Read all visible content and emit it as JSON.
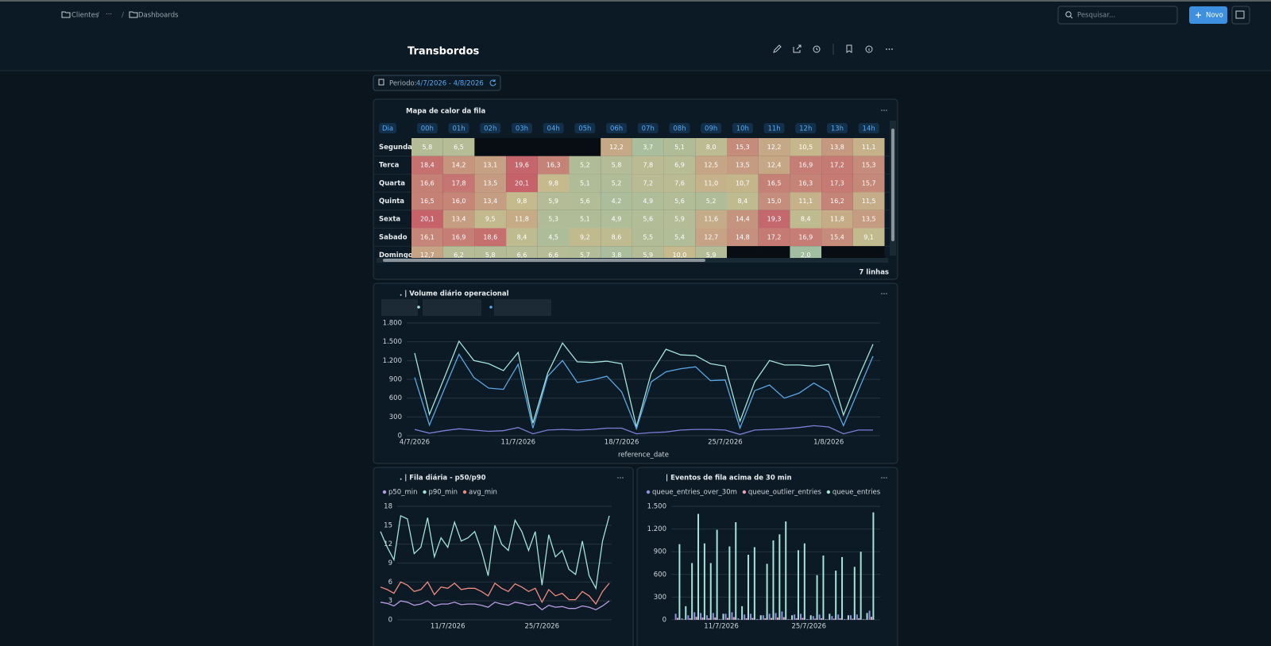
{
  "header": {
    "breadcrumb": [
      "Clientes",
      "···",
      "Dashboards"
    ],
    "breadcrumb_separator": "/",
    "search_placeholder": "Pesquisar...",
    "new_button": "Novo",
    "title": "Transbordos",
    "period_label": "Periodo:",
    "period_value": "4/7/2026 - 4/8/2026"
  },
  "heatmap": {
    "title": "Mapa de calor da fila",
    "day_header": "Dia",
    "hours": [
      "00h",
      "01h",
      "02h",
      "03h",
      "04h",
      "05h",
      "06h",
      "07h",
      "08h",
      "09h",
      "10h",
      "11h",
      "12h",
      "13h",
      "14h"
    ],
    "rows": [
      {
        "day": "Segunda",
        "values": [
          "5,8",
          "6,5",
          null,
          null,
          null,
          null,
          "12,2",
          "3,7",
          "5,1",
          "8,0",
          "15,3",
          "12,2",
          "10,5",
          "13,8",
          "11,1"
        ]
      },
      {
        "day": "Terca",
        "values": [
          "18,4",
          "14,2",
          "13,1",
          "19,6",
          "16,3",
          "5,2",
          "5,8",
          "7,8",
          "6,9",
          "12,5",
          "13,5",
          "12,4",
          "16,9",
          "17,2",
          "15,3"
        ]
      },
      {
        "day": "Quarta",
        "values": [
          "16,6",
          "17,8",
          "13,5",
          "20,1",
          "9,8",
          "5,1",
          "5,2",
          "7,2",
          "7,6",
          "11,0",
          "10,7",
          "16,5",
          "16,3",
          "17,3",
          "15,7"
        ]
      },
      {
        "day": "Quinta",
        "values": [
          "16,5",
          "16,0",
          "13,4",
          "9,8",
          "5,9",
          "5,6",
          "4,2",
          "4,9",
          "5,6",
          "5,2",
          "8,4",
          "15,0",
          "11,1",
          "16,2",
          "11,5"
        ]
      },
      {
        "day": "Sexta",
        "values": [
          "20,1",
          "13,4",
          "9,5",
          "11,8",
          "5,3",
          "5,1",
          "4,9",
          "5,6",
          "5,9",
          "11,6",
          "14,4",
          "19,3",
          "8,4",
          "11,8",
          "13,5"
        ]
      },
      {
        "day": "Sabado",
        "values": [
          "16,1",
          "16,9",
          "18,6",
          "8,4",
          "4,5",
          "9,2",
          "8,6",
          "5,5",
          "5,4",
          "12,7",
          "14,8",
          "17,2",
          "16,9",
          "15,4",
          "9,1"
        ]
      },
      {
        "day": "Domingo",
        "values": [
          "12,7",
          "6,2",
          "5,8",
          "6,6",
          "6,6",
          "5,7",
          "3,8",
          "5,9",
          "10,0",
          "5,9",
          null,
          null,
          "2,0",
          null,
          null
        ]
      }
    ],
    "footer": "7 linhas"
  },
  "charts": [
    {
      "type": "line",
      "title": ". | Volume diário operacional",
      "xlabel": "reference_date",
      "categories": [
        "4/7/2026",
        null,
        null,
        null,
        null,
        null,
        null,
        "11/7/2026",
        null,
        null,
        null,
        null,
        null,
        null,
        "18/7/2026",
        null,
        null,
        null,
        null,
        null,
        null,
        "25/7/2026",
        null,
        null,
        null,
        null,
        null,
        null,
        "1/8/2026",
        null,
        null,
        null
      ],
      "ylim": [
        0,
        1800
      ],
      "yticks": [
        0,
        300,
        600,
        900,
        {
          "value": 1200,
          "label": "1.200"
        },
        {
          "value": 1500,
          "label": "1.500"
        },
        {
          "value": 1800,
          "label": "1.800"
        }
      ],
      "grid": true,
      "series": [
        {
          "color": "#a4e3d8",
          "values": [
            1320,
            340,
            920,
            1510,
            1200,
            1150,
            1040,
            1330,
            200,
            1000,
            1480,
            1180,
            1170,
            1190,
            1150,
            140,
            1000,
            1380,
            1290,
            1280,
            1150,
            1110,
            230,
            860,
            1200,
            1130,
            1130,
            1110,
            1140,
            330,
            920,
            1460
          ]
        },
        {
          "color": "#5aa8e6",
          "values": [
            930,
            170,
            740,
            1300,
            930,
            760,
            740,
            1140,
            120,
            950,
            1200,
            850,
            890,
            950,
            700,
            110,
            860,
            1020,
            1070,
            1100,
            880,
            890,
            120,
            720,
            810,
            600,
            680,
            840,
            700,
            160,
            720,
            1270
          ]
        },
        {
          "color": "#7b7fd6",
          "values": [
            100,
            40,
            80,
            110,
            90,
            70,
            80,
            130,
            30,
            90,
            100,
            90,
            100,
            120,
            120,
            30,
            50,
            60,
            90,
            100,
            100,
            90,
            20,
            90,
            100,
            110,
            130,
            160,
            140,
            30,
            90,
            90
          ]
        }
      ]
    },
    {
      "type": "line",
      "title": ". | Fila diária - p50/p90",
      "categories": [
        null,
        null,
        null,
        null,
        null,
        null,
        null,
        null,
        null,
        null,
        "11/7/2026",
        null,
        null,
        null,
        null,
        null,
        null,
        null,
        null,
        null,
        null,
        null,
        null,
        null,
        "25/7/2026",
        null,
        null,
        null,
        null,
        null,
        null,
        null,
        null,
        null,
        null
      ],
      "ylim": [
        0,
        18
      ],
      "yticks": [
        0,
        3,
        6,
        9,
        12,
        15,
        18
      ],
      "grid": true,
      "series": [
        {
          "name": "p50_min",
          "color": "#b79be0",
          "values": [
            2.8,
            2.6,
            2.2,
            3,
            2.8,
            2.3,
            2.5,
            3,
            2.2,
            2.5,
            2.5,
            2.8,
            2.4,
            2.5,
            2.5,
            2.3,
            2,
            2.8,
            2.5,
            2.3,
            2.8,
            2.6,
            2.3,
            2.5,
            1.6,
            2.3,
            2,
            2.1,
            1.8,
            1.8,
            2.2,
            2,
            1.6,
            2.2,
            3
          ]
        },
        {
          "name": "p90_min",
          "color": "#a4e3d8",
          "values": [
            14,
            11.5,
            9.5,
            16.5,
            16,
            10.5,
            11.5,
            16.2,
            10,
            13,
            11.5,
            15.5,
            12.5,
            13,
            14,
            11,
            7,
            15,
            12,
            11,
            15.8,
            14,
            11,
            14,
            5.5,
            13.5,
            10,
            11,
            8,
            7.2,
            12.5,
            7,
            5,
            12.5,
            16.5
          ]
        },
        {
          "name": "avg_min",
          "color": "#f08a7e",
          "values": [
            5.2,
            4.8,
            4.2,
            6,
            5.5,
            4.5,
            4.8,
            6,
            4,
            5.2,
            5,
            5.8,
            4.8,
            5,
            5,
            4.5,
            3.8,
            5.8,
            5,
            4.5,
            5.7,
            5.2,
            4.5,
            5,
            2.8,
            4.8,
            3.8,
            4.2,
            3.2,
            3.2,
            4.5,
            3.8,
            2.5,
            4.5,
            5.8
          ]
        }
      ]
    },
    {
      "type": "bar",
      "title": "| Eventos de fila acima de 30 min",
      "categories": [
        null,
        null,
        null,
        null,
        null,
        null,
        null,
        "11/7/2026",
        null,
        null,
        null,
        null,
        null,
        null,
        null,
        null,
        null,
        null,
        null,
        null,
        null,
        "25/7/2026",
        null,
        null,
        null,
        null,
        null,
        null,
        null,
        null,
        null,
        null
      ],
      "ylim": [
        0,
        1500
      ],
      "yticks": [
        0,
        300,
        600,
        900,
        {
          "value": 1200,
          "label": "1.200"
        },
        {
          "value": 1500,
          "label": "1.500"
        }
      ],
      "grid": true,
      "series": [
        {
          "name": "queue_entries_over_30m",
          "color": "#8d8fe0",
          "values": [
            80,
            20,
            60,
            100,
            90,
            60,
            90,
            10,
            80,
            100,
            20,
            70,
            80,
            10,
            60,
            80,
            90,
            110,
            10,
            70,
            80,
            10,
            50,
            70,
            10,
            50,
            70,
            10,
            60,
            70,
            10,
            120
          ]
        },
        {
          "name": "queue_outlier_entries",
          "color": "#f0a0b8",
          "values": [
            25,
            5,
            20,
            40,
            30,
            20,
            30,
            5,
            25,
            35,
            5,
            20,
            25,
            5,
            20,
            25,
            30,
            35,
            5,
            20,
            25,
            5,
            15,
            20,
            5,
            15,
            20,
            5,
            15,
            20,
            5,
            40
          ]
        },
        {
          "name": "queue_entries",
          "color": "#a4e3d8",
          "values": [
            1000,
            180,
            750,
            1400,
            1010,
            750,
            1190,
            80,
            970,
            1290,
            180,
            860,
            960,
            60,
            740,
            1050,
            1130,
            1300,
            60,
            920,
            1010,
            60,
            590,
            850,
            80,
            650,
            830,
            60,
            700,
            900,
            90,
            1420
          ]
        }
      ]
    }
  ]
}
